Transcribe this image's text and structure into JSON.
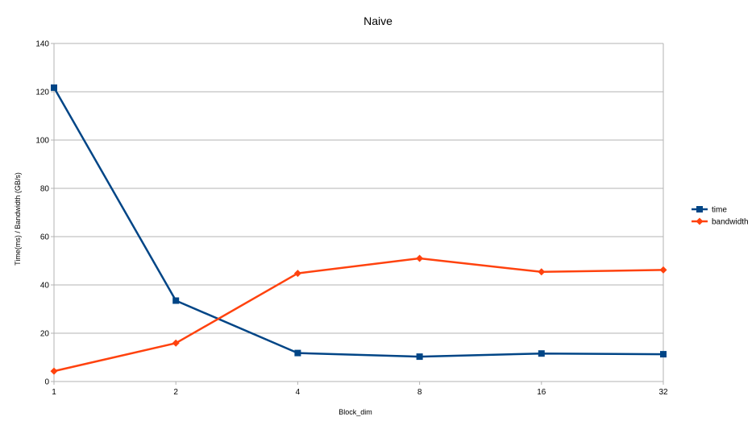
{
  "chart_data": {
    "type": "line",
    "title": "Naive",
    "xlabel": "Block_dim",
    "ylabel": "Time(ms) / Bandwidth (GB/s)",
    "categories": [
      "1",
      "2",
      "4",
      "8",
      "16",
      "32"
    ],
    "ylim": [
      0,
      140
    ],
    "yticks": [
      0,
      20,
      40,
      60,
      80,
      100,
      120,
      140
    ],
    "grid": true,
    "legend_position": "right",
    "series": [
      {
        "name": "time",
        "color": "#004586",
        "marker": "square",
        "values": [
          121.7,
          33.5,
          11.8,
          10.3,
          11.6,
          11.3
        ]
      },
      {
        "name": "bandwidth",
        "color": "#ff420e",
        "marker": "diamond",
        "values": [
          4.3,
          15.9,
          44.8,
          51.0,
          45.4,
          46.2
        ]
      }
    ]
  }
}
